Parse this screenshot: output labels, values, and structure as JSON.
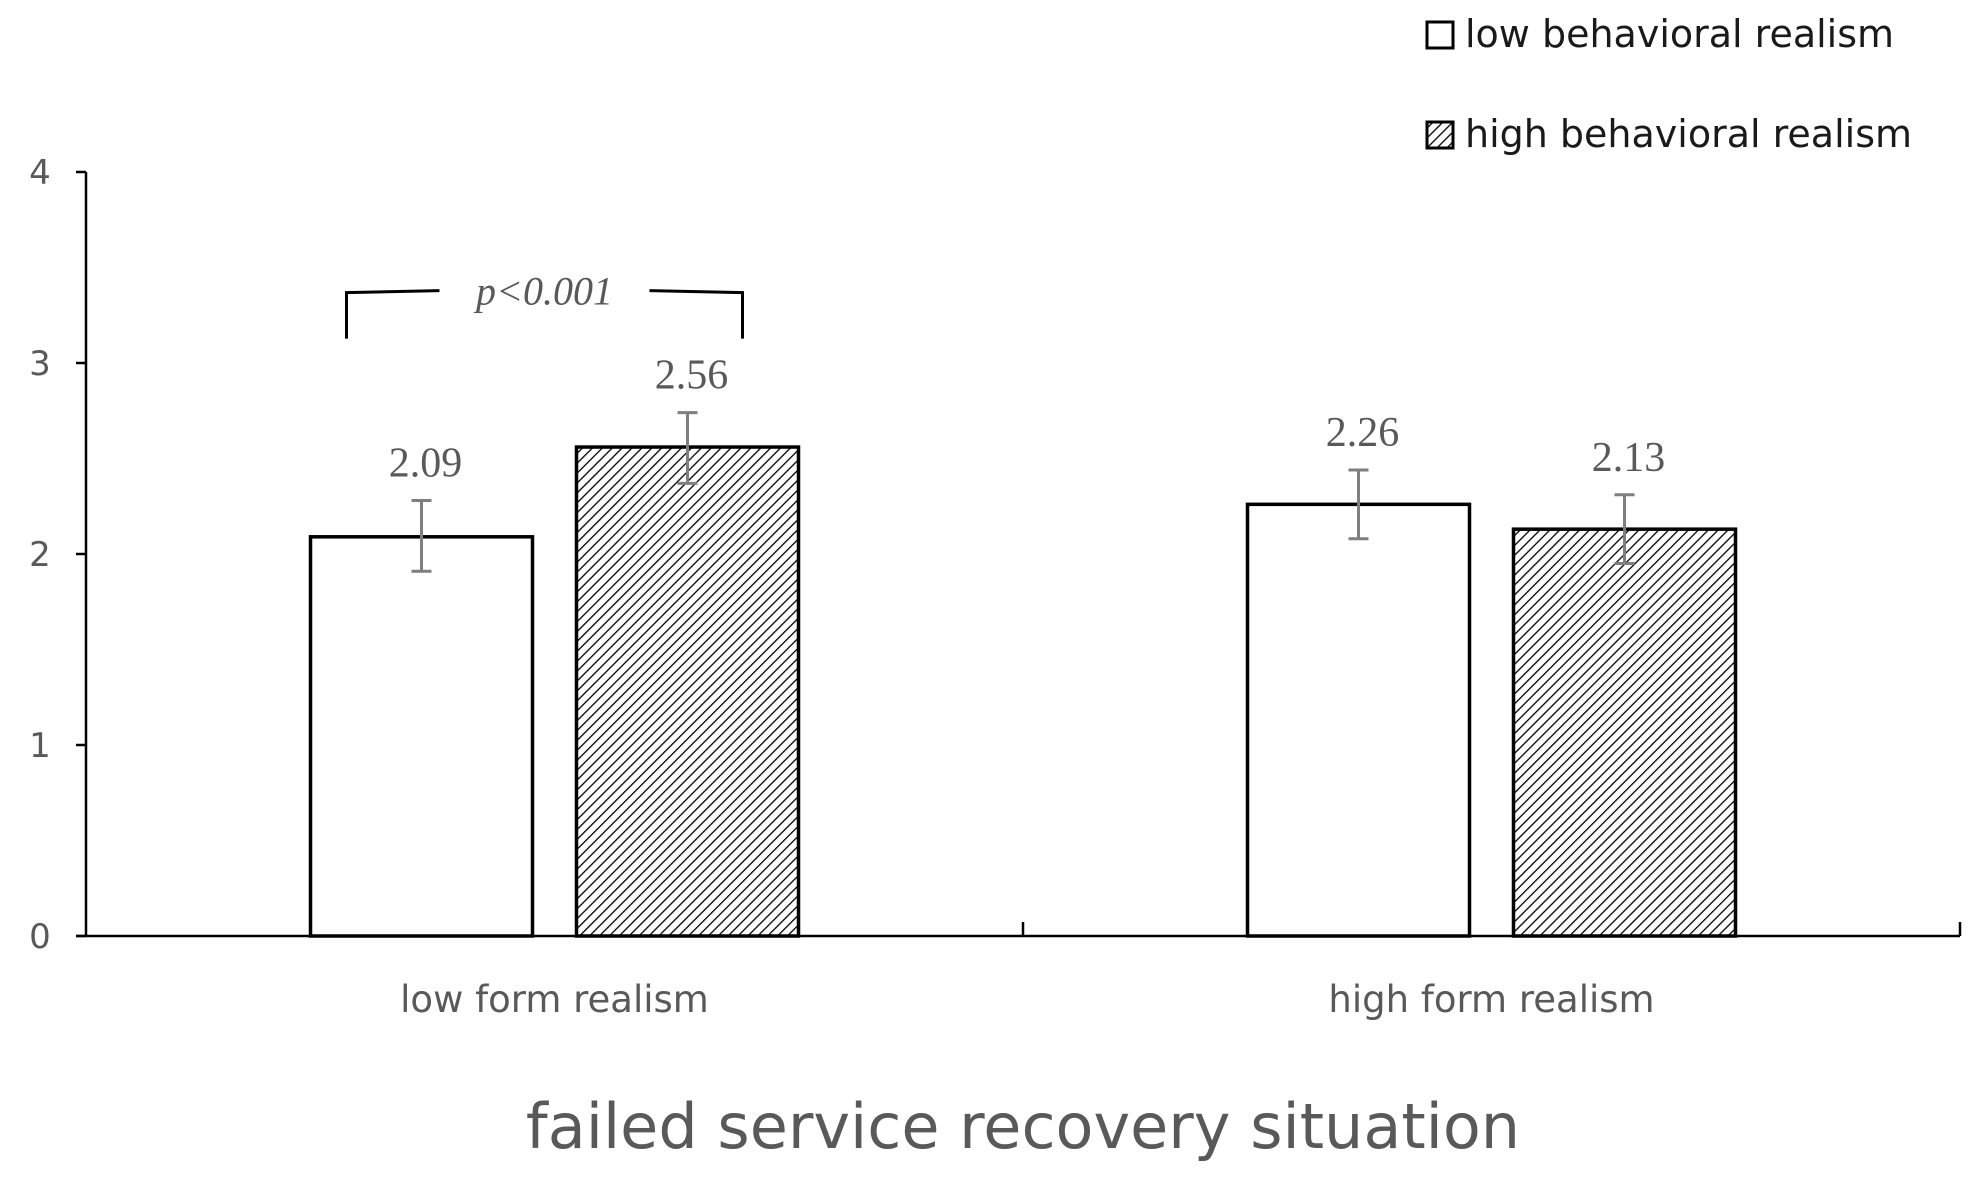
{
  "chart_data": {
    "type": "bar",
    "title": "",
    "xlabel": "failed service recovery situation",
    "ylabel": "",
    "ylim": [
      0,
      4
    ],
    "yticks": [
      "0",
      "1",
      "2",
      "3",
      "4"
    ],
    "categories": [
      "low form realism",
      "high form realism"
    ],
    "series": [
      {
        "name": "low behavioral realism",
        "pattern": "solid",
        "fill": "#ffffff",
        "values": [
          2.09,
          2.26
        ],
        "labels": [
          "2.09",
          "2.26"
        ],
        "error_low": [
          1.91,
          2.08
        ],
        "error_high": [
          2.28,
          2.44
        ]
      },
      {
        "name": "high behavioral realism",
        "pattern": "hatched",
        "fill": "#ffffff",
        "values": [
          2.56,
          2.13
        ],
        "labels": [
          "2.56",
          "2.13"
        ],
        "error_low": [
          2.37,
          1.95
        ],
        "error_high": [
          2.74,
          2.31
        ]
      }
    ],
    "annotations": [
      {
        "text": "p<0.001",
        "between_category": 0,
        "level": 3.4
      }
    ],
    "legend": {
      "position": "top-right"
    },
    "grid": false,
    "colors": {
      "bar_border": "#000000",
      "axis": "#000000",
      "text": "#595959",
      "error_bar": "#7f7f7f"
    }
  }
}
